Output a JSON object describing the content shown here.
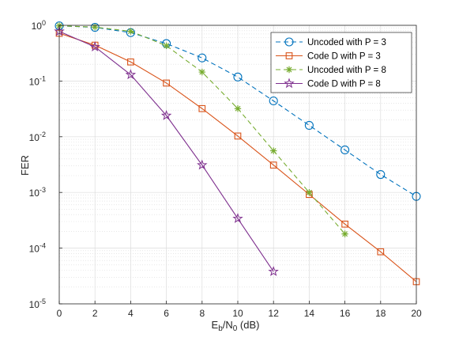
{
  "chart_data": {
    "type": "line",
    "xlabel": {
      "main": "E",
      "sub1": "b",
      "mid": "/N",
      "sub2": "0",
      "tail": " (dB)"
    },
    "ylabel": "FER",
    "y_scale": "log",
    "xlim": [
      0,
      20
    ],
    "ylim": [
      1e-05,
      1
    ],
    "x_ticks": [
      0,
      2,
      4,
      6,
      8,
      10,
      12,
      14,
      16,
      18,
      20
    ],
    "y_ticks": [
      {
        "value": 1e-05,
        "base": "10",
        "exp": "-5"
      },
      {
        "value": 0.0001,
        "base": "10",
        "exp": "-4"
      },
      {
        "value": 0.001,
        "base": "10",
        "exp": "-3"
      },
      {
        "value": 0.01,
        "base": "10",
        "exp": "-2"
      },
      {
        "value": 0.1,
        "base": "10",
        "exp": "-1"
      },
      {
        "value": 1,
        "base": "10",
        "exp": "0"
      }
    ],
    "grid": "major and minor",
    "legend_position": "top-right",
    "series": [
      {
        "name": "Uncoded with P = 3",
        "color": "#0072BD",
        "line_style": "dashed",
        "marker": "circle",
        "x": [
          0,
          2,
          4,
          6,
          8,
          10,
          12,
          14,
          16,
          18,
          20
        ],
        "y": [
          0.98,
          0.92,
          0.74,
          0.47,
          0.26,
          0.118,
          0.044,
          0.016,
          0.0058,
          0.0021,
          0.00085
        ]
      },
      {
        "name": "Code D with P = 3",
        "color": "#D95319",
        "line_style": "solid",
        "marker": "square",
        "x": [
          0,
          2,
          4,
          6,
          8,
          10,
          12,
          14,
          16,
          18,
          20
        ],
        "y": [
          0.72,
          0.44,
          0.22,
          0.092,
          0.032,
          0.0103,
          0.0031,
          0.00092,
          0.00027,
          8.6e-05,
          2.5e-05
        ]
      },
      {
        "name": "Uncoded with P = 8",
        "color": "#77AC30",
        "line_style": "dashed",
        "marker": "asterisk",
        "x": [
          0,
          2,
          4,
          6,
          8,
          10,
          12,
          14,
          16
        ],
        "y": [
          0.98,
          0.93,
          0.78,
          0.43,
          0.145,
          0.032,
          0.0056,
          0.001,
          0.00018
        ]
      },
      {
        "name": "Code D with P = 8",
        "color": "#7E2F8E",
        "line_style": "solid",
        "marker": "pentagram",
        "x": [
          0,
          2,
          4,
          6,
          8,
          10,
          12
        ],
        "y": [
          0.78,
          0.41,
          0.13,
          0.024,
          0.0031,
          0.00034,
          3.8e-05
        ]
      }
    ]
  }
}
